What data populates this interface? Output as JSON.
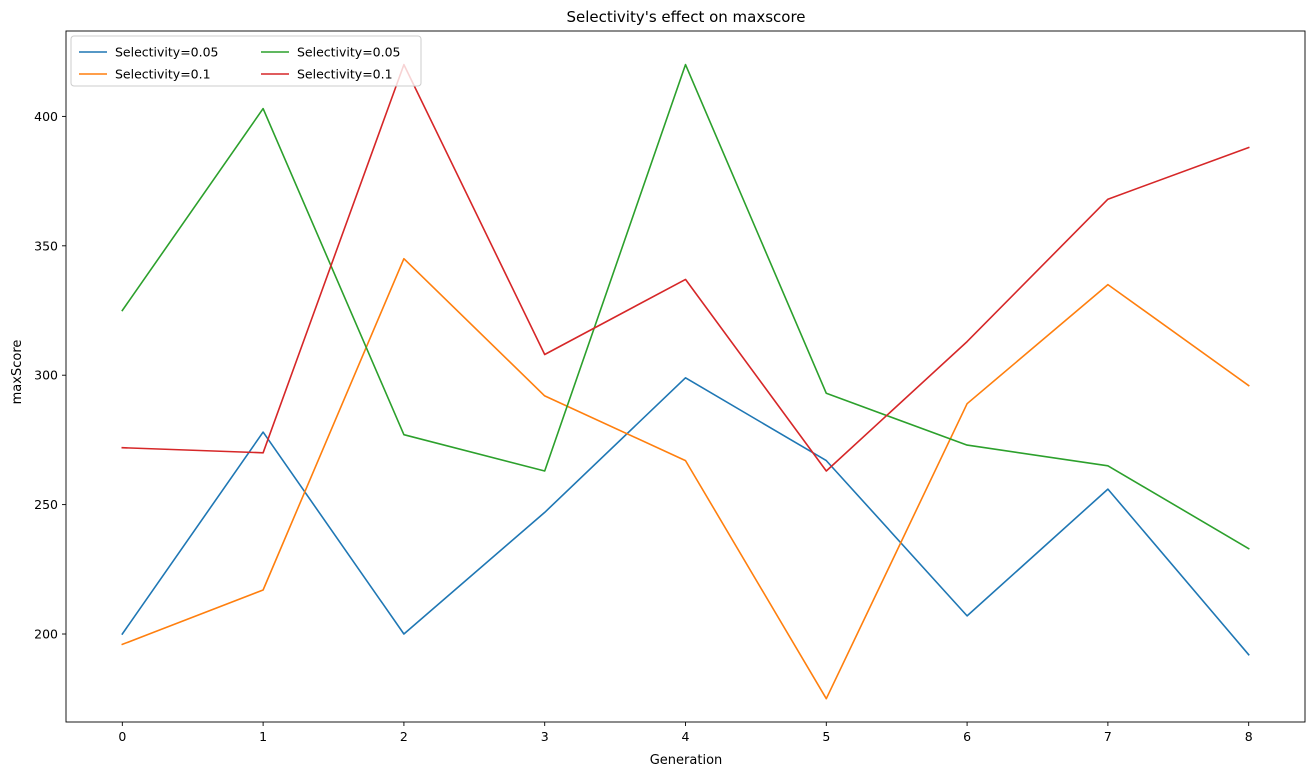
{
  "chart_data": {
    "type": "line",
    "title": "Selectivity's effect on maxscore",
    "xlabel": "Generation",
    "ylabel": "maxScore",
    "x": [
      0,
      1,
      2,
      3,
      4,
      5,
      6,
      7,
      8
    ],
    "xlim": [
      -0.4,
      8.4
    ],
    "ylim": [
      166,
      433
    ],
    "xticks": [
      0,
      1,
      2,
      3,
      4,
      5,
      6,
      7,
      8
    ],
    "yticks": [
      200,
      250,
      300,
      350,
      400
    ],
    "grid": false,
    "legend": {
      "placement": "top-left",
      "columns": 2
    },
    "series": [
      {
        "name": "Selectivity=0.05",
        "color": "#1f77b4",
        "values": [
          200,
          278,
          200,
          247,
          299,
          267,
          207,
          256,
          192
        ]
      },
      {
        "name": "Selectivity=0.1",
        "color": "#ff7f0e",
        "values": [
          196,
          217,
          345,
          292,
          267,
          175,
          289,
          335,
          296
        ]
      },
      {
        "name": "Selectivity=0.05",
        "color": "#2ca02c",
        "values": [
          325,
          403,
          277,
          263,
          420,
          293,
          273,
          265,
          233
        ]
      },
      {
        "name": "Selectivity=0.1",
        "color": "#d62728",
        "values": [
          272,
          270,
          420,
          308,
          337,
          263,
          313,
          368,
          388
        ]
      }
    ]
  }
}
